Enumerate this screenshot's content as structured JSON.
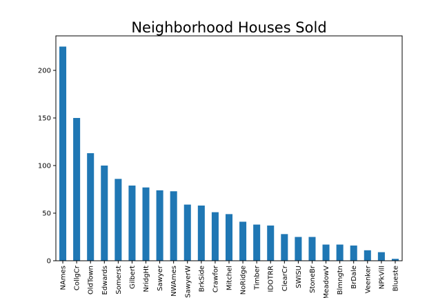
{
  "chart_data": {
    "type": "bar",
    "title": "Neighborhood Houses Sold",
    "xlabel": "",
    "ylabel": "",
    "categories": [
      "NAmes",
      "CollgCr",
      "OldTown",
      "Edwards",
      "Somerst",
      "Gilbert",
      "NridgHt",
      "Sawyer",
      "NWAmes",
      "SawyerW",
      "BrkSide",
      "Crawfor",
      "Mitchel",
      "NoRidge",
      "Timber",
      "IDOTRR",
      "ClearCr",
      "SWISU",
      "StoneBr",
      "MeadowV",
      "Blmngtn",
      "BrDale",
      "Veenker",
      "NPkVill",
      "Blueste"
    ],
    "values": [
      225,
      150,
      113,
      100,
      86,
      79,
      77,
      74,
      73,
      59,
      58,
      51,
      49,
      41,
      38,
      37,
      28,
      25,
      25,
      17,
      17,
      16,
      11,
      9,
      2
    ],
    "ylim": [
      0,
      236.25
    ],
    "yticks": [
      0,
      50,
      100,
      150,
      200
    ],
    "grid": false,
    "legend": "none",
    "bar_color": "#1f77b4"
  }
}
